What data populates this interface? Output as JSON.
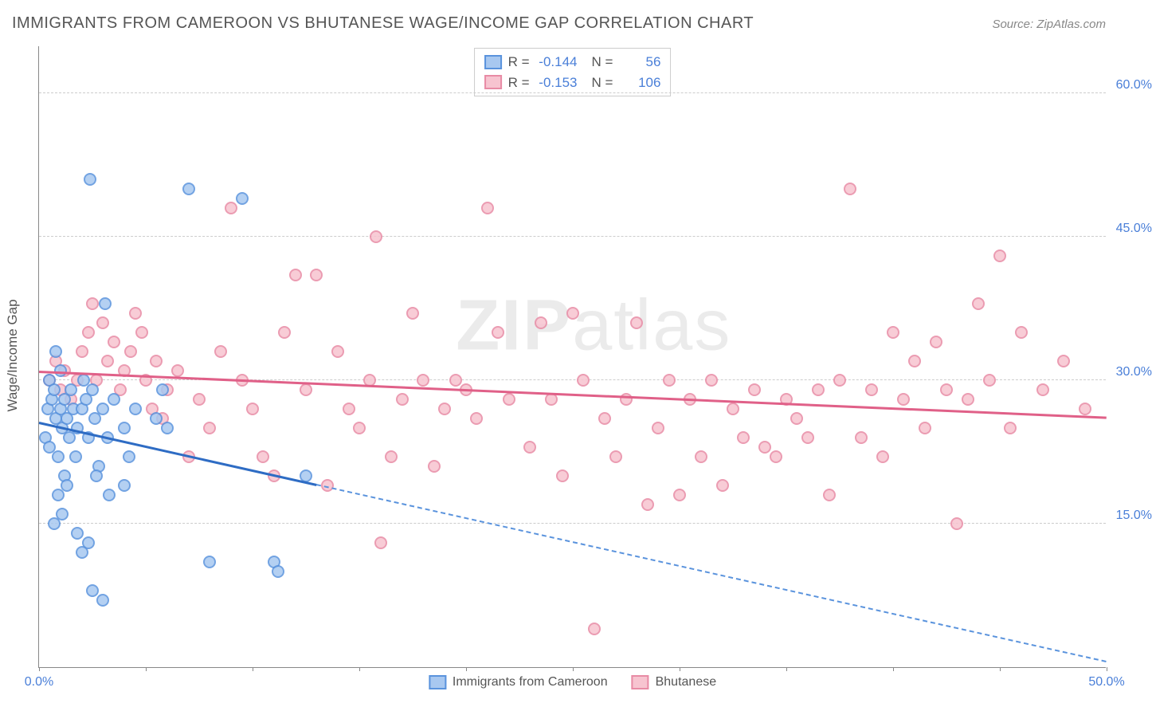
{
  "title": "IMMIGRANTS FROM CAMEROON VS BHUTANESE WAGE/INCOME GAP CORRELATION CHART",
  "source": "Source: ZipAtlas.com",
  "ylabel": "Wage/Income Gap",
  "watermark_bold": "ZIP",
  "watermark_light": "atlas",
  "chart": {
    "type": "scatter",
    "background_color": "#ffffff",
    "grid_color": "#cccccc",
    "grid_dash": true,
    "axis_color": "#888888",
    "tick_color": "#4a7fd8",
    "tick_fontsize": 16,
    "xlim": [
      0,
      50
    ],
    "ylim": [
      0,
      65
    ],
    "yticks": [
      15,
      30,
      45,
      60
    ],
    "ytick_labels": [
      "15.0%",
      "30.0%",
      "45.0%",
      "60.0%"
    ],
    "xtick_marks": [
      0,
      5,
      10,
      15,
      20,
      25,
      30,
      35,
      40,
      45,
      50
    ],
    "xtick_labels": {
      "0": "0.0%",
      "50": "50.0%"
    },
    "marker_size": 16,
    "marker_opacity_fill": 0.35,
    "marker_opacity_stroke": 0.9,
    "series": [
      {
        "name": "Immigrants from Cameroon",
        "color_fill": "#a8c8f0",
        "color_stroke": "#5a93dd",
        "R": "-0.144",
        "N": "56",
        "trend": {
          "x1": 0,
          "y1": 25.5,
          "x2": 13,
          "y2": 19,
          "color": "#2e6cc4",
          "width": 2.5
        },
        "trend_extrapolated": {
          "x1": 13,
          "y1": 19,
          "x2": 50,
          "y2": 0.5,
          "color": "#5a93dd",
          "dash": true,
          "width": 2
        },
        "points": [
          [
            0.3,
            24
          ],
          [
            0.4,
            27
          ],
          [
            0.5,
            23
          ],
          [
            0.6,
            28
          ],
          [
            0.8,
            26
          ],
          [
            0.9,
            22
          ],
          [
            0.5,
            30
          ],
          [
            0.7,
            29
          ],
          [
            1.0,
            27
          ],
          [
            1.1,
            25
          ],
          [
            1.2,
            28
          ],
          [
            1.0,
            31
          ],
          [
            0.8,
            33
          ],
          [
            1.3,
            26
          ],
          [
            1.5,
            29
          ],
          [
            1.4,
            24
          ],
          [
            1.6,
            27
          ],
          [
            1.7,
            22
          ],
          [
            1.2,
            20
          ],
          [
            1.8,
            25
          ],
          [
            2.0,
            27
          ],
          [
            2.1,
            30
          ],
          [
            2.2,
            28
          ],
          [
            2.5,
            29
          ],
          [
            2.3,
            24
          ],
          [
            2.6,
            26
          ],
          [
            2.8,
            21
          ],
          [
            3.0,
            27
          ],
          [
            3.2,
            24
          ],
          [
            3.5,
            28
          ],
          [
            3.1,
            38
          ],
          [
            2.4,
            51
          ],
          [
            4.0,
            25
          ],
          [
            4.2,
            22
          ],
          [
            4.5,
            27
          ],
          [
            0.9,
            18
          ],
          [
            1.1,
            16
          ],
          [
            1.3,
            19
          ],
          [
            0.7,
            15
          ],
          [
            2.7,
            20
          ],
          [
            3.3,
            18
          ],
          [
            2.0,
            12
          ],
          [
            2.3,
            13
          ],
          [
            2.5,
            8
          ],
          [
            3.0,
            7
          ],
          [
            1.8,
            14
          ],
          [
            4.0,
            19
          ],
          [
            5.5,
            26
          ],
          [
            5.8,
            29
          ],
          [
            6.0,
            25
          ],
          [
            7.0,
            50
          ],
          [
            8.0,
            11
          ],
          [
            9.5,
            49
          ],
          [
            11.0,
            11
          ],
          [
            11.2,
            10
          ],
          [
            12.5,
            20
          ]
        ]
      },
      {
        "name": "Bhutanese",
        "color_fill": "#f7c4d0",
        "color_stroke": "#e88ba5",
        "R": "-0.153",
        "N": "106",
        "trend": {
          "x1": 0,
          "y1": 30.8,
          "x2": 50,
          "y2": 26,
          "color": "#e06088",
          "width": 2.5
        },
        "points": [
          [
            0.5,
            30
          ],
          [
            0.8,
            32
          ],
          [
            1.0,
            29
          ],
          [
            1.2,
            31
          ],
          [
            1.5,
            28
          ],
          [
            1.8,
            30
          ],
          [
            2.0,
            33
          ],
          [
            2.3,
            35
          ],
          [
            2.5,
            38
          ],
          [
            2.7,
            30
          ],
          [
            3.0,
            36
          ],
          [
            3.2,
            32
          ],
          [
            3.5,
            34
          ],
          [
            3.8,
            29
          ],
          [
            4.0,
            31
          ],
          [
            4.3,
            33
          ],
          [
            4.5,
            37
          ],
          [
            4.8,
            35
          ],
          [
            5.0,
            30
          ],
          [
            5.3,
            27
          ],
          [
            5.5,
            32
          ],
          [
            5.8,
            26
          ],
          [
            6.0,
            29
          ],
          [
            6.5,
            31
          ],
          [
            7.0,
            22
          ],
          [
            7.5,
            28
          ],
          [
            8.0,
            25
          ],
          [
            8.5,
            33
          ],
          [
            9.0,
            48
          ],
          [
            9.5,
            30
          ],
          [
            10.0,
            27
          ],
          [
            10.5,
            22
          ],
          [
            11.0,
            20
          ],
          [
            11.5,
            35
          ],
          [
            12.0,
            41
          ],
          [
            12.5,
            29
          ],
          [
            13.0,
            41
          ],
          [
            13.5,
            19
          ],
          [
            14.0,
            33
          ],
          [
            14.5,
            27
          ],
          [
            15.0,
            25
          ],
          [
            15.5,
            30
          ],
          [
            15.8,
            45
          ],
          [
            16.0,
            13
          ],
          [
            16.5,
            22
          ],
          [
            17.0,
            28
          ],
          [
            17.5,
            37
          ],
          [
            18.0,
            30
          ],
          [
            18.5,
            21
          ],
          [
            19.0,
            27
          ],
          [
            19.5,
            30
          ],
          [
            20.0,
            29
          ],
          [
            20.5,
            26
          ],
          [
            21.0,
            48
          ],
          [
            21.5,
            35
          ],
          [
            22.0,
            28
          ],
          [
            23.0,
            23
          ],
          [
            23.5,
            36
          ],
          [
            24.0,
            28
          ],
          [
            24.5,
            20
          ],
          [
            25.0,
            37
          ],
          [
            25.5,
            30
          ],
          [
            26.0,
            4
          ],
          [
            26.5,
            26
          ],
          [
            27.0,
            22
          ],
          [
            27.5,
            28
          ],
          [
            28.0,
            36
          ],
          [
            28.5,
            17
          ],
          [
            29.0,
            25
          ],
          [
            29.5,
            30
          ],
          [
            30.0,
            18
          ],
          [
            30.5,
            28
          ],
          [
            31.0,
            22
          ],
          [
            31.5,
            30
          ],
          [
            32.0,
            19
          ],
          [
            32.5,
            27
          ],
          [
            33.0,
            24
          ],
          [
            33.5,
            29
          ],
          [
            34.0,
            23
          ],
          [
            34.5,
            22
          ],
          [
            35.0,
            28
          ],
          [
            35.5,
            26
          ],
          [
            36.0,
            24
          ],
          [
            36.5,
            29
          ],
          [
            37.0,
            18
          ],
          [
            37.5,
            30
          ],
          [
            38.0,
            50
          ],
          [
            38.5,
            24
          ],
          [
            39.0,
            29
          ],
          [
            39.5,
            22
          ],
          [
            40.0,
            35
          ],
          [
            40.5,
            28
          ],
          [
            41.0,
            32
          ],
          [
            41.5,
            25
          ],
          [
            42.0,
            34
          ],
          [
            42.5,
            29
          ],
          [
            43.0,
            15
          ],
          [
            43.5,
            28
          ],
          [
            44.0,
            38
          ],
          [
            44.5,
            30
          ],
          [
            45.0,
            43
          ],
          [
            45.5,
            25
          ],
          [
            46.0,
            35
          ],
          [
            47.0,
            29
          ],
          [
            48.0,
            32
          ],
          [
            49.0,
            27
          ]
        ]
      }
    ]
  },
  "legend": {
    "r_label": "R =",
    "n_label": "N ="
  }
}
